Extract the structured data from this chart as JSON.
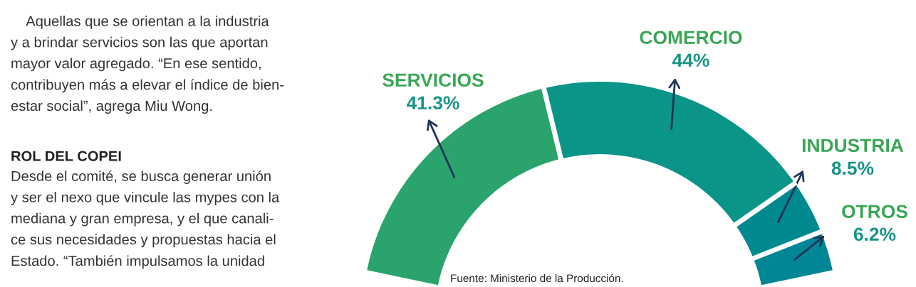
{
  "chart_data": {
    "type": "donut",
    "categories": [
      "SERVICIOS",
      "COMERCIO",
      "INDUSTRIA",
      "OTROS"
    ],
    "values": [
      41.3,
      44,
      8.5,
      6.2
    ],
    "value_labels": [
      "41.3%",
      "44%",
      "8.5%",
      "6.2%"
    ],
    "colors": [
      "#2aa46c",
      "#0b9488",
      "#00898f",
      "#008694"
    ],
    "annotations": [
      "    Aquellas que se orientan a la industria\ny a brindar servicios son las que aportan\nmayor valor agregado. “En ese sentido,\ncontribuyen más a elevar el índice de bien-\nestar social”, agrega Miu Wong.",
      "ROL DEL COPEI",
      "Desde el comité, se busca generar unión\ny ser el nexo que vincule las mypes con la\nmediana y gran empresa, y el que canali-\nce sus necesidades y propuestas hacia el\nEstado. “También impulsamos la unidad",
      "Fuente: Ministerio de la Producción."
    ]
  }
}
